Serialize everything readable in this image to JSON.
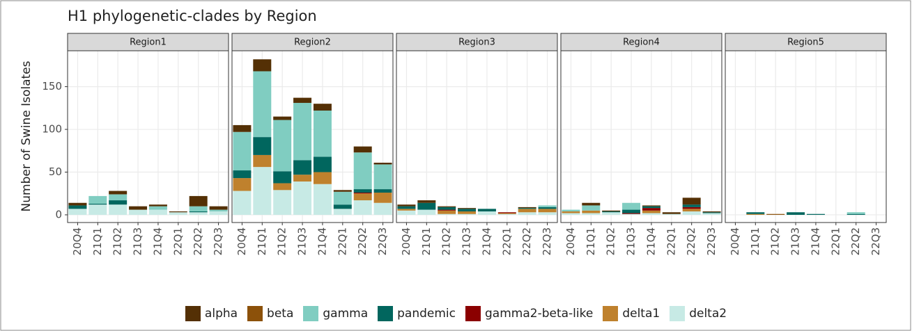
{
  "title": "H1 phylogenetic-clades by Region",
  "ylabel": "Number of Swine Isolates",
  "chart_data": [
    {
      "type": "bar",
      "stacked": true,
      "title": "Region1",
      "grid": true,
      "ylim": [
        -9,
        192
      ],
      "yticks": [
        0,
        50,
        100,
        150
      ],
      "categories": [
        "20Q4",
        "21Q1",
        "21Q2",
        "21Q3",
        "21Q4",
        "22Q1",
        "22Q2",
        "22Q3"
      ],
      "series": [
        {
          "name": "alpha",
          "color": "#543005",
          "values": [
            3,
            0,
            4,
            4,
            2,
            1,
            12,
            4
          ]
        },
        {
          "name": "beta",
          "color": "#8c510a",
          "values": [
            0,
            0,
            0,
            0,
            0,
            0,
            0,
            0
          ]
        },
        {
          "name": "gamma",
          "color": "#80cdc1",
          "values": [
            0,
            9,
            7,
            0,
            4,
            0,
            6,
            2
          ]
        },
        {
          "name": "pandemic",
          "color": "#01665e",
          "values": [
            4,
            1,
            5,
            0,
            0,
            0,
            1,
            0
          ]
        },
        {
          "name": "gamma2-beta-like",
          "color": "#8b0000",
          "values": [
            0,
            0,
            0,
            0,
            0,
            0,
            0,
            0
          ]
        },
        {
          "name": "delta1",
          "color": "#bf812d",
          "values": [
            0,
            0,
            0,
            0,
            0,
            0,
            0,
            0
          ]
        },
        {
          "name": "delta2",
          "color": "#c7eae5",
          "values": [
            7,
            12,
            12,
            6,
            6,
            3,
            3,
            4
          ]
        }
      ]
    },
    {
      "type": "bar",
      "stacked": true,
      "title": "Region2",
      "grid": true,
      "ylim": [
        -9,
        192
      ],
      "yticks": [
        0,
        50,
        100,
        150
      ],
      "categories": [
        "20Q4",
        "21Q1",
        "21Q2",
        "21Q3",
        "21Q4",
        "22Q1",
        "22Q2",
        "22Q3"
      ],
      "series": [
        {
          "name": "alpha",
          "color": "#543005",
          "values": [
            8,
            14,
            4,
            6,
            8,
            2,
            7,
            2
          ]
        },
        {
          "name": "beta",
          "color": "#8c510a",
          "values": [
            0,
            0,
            0,
            0,
            0,
            0,
            0,
            0
          ]
        },
        {
          "name": "gamma",
          "color": "#80cdc1",
          "values": [
            45,
            77,
            60,
            67,
            54,
            15,
            43,
            29
          ]
        },
        {
          "name": "pandemic",
          "color": "#01665e",
          "values": [
            9,
            21,
            14,
            17,
            18,
            5,
            4,
            4
          ]
        },
        {
          "name": "gamma2-beta-like",
          "color": "#8b0000",
          "values": [
            0,
            0,
            0,
            0,
            0,
            0,
            1,
            0
          ]
        },
        {
          "name": "delta1",
          "color": "#bf812d",
          "values": [
            15,
            14,
            8,
            8,
            14,
            0,
            8,
            12
          ]
        },
        {
          "name": "delta2",
          "color": "#c7eae5",
          "values": [
            28,
            56,
            29,
            39,
            36,
            7,
            17,
            14
          ]
        }
      ]
    },
    {
      "type": "bar",
      "stacked": true,
      "title": "Region3",
      "grid": true,
      "ylim": [
        -9,
        192
      ],
      "yticks": [
        0,
        50,
        100,
        150
      ],
      "categories": [
        "20Q4",
        "21Q1",
        "21Q2",
        "21Q3",
        "21Q4",
        "22Q1",
        "22Q2",
        "22Q3"
      ],
      "series": [
        {
          "name": "alpha",
          "color": "#543005",
          "values": [
            2,
            3,
            1,
            1,
            0,
            0,
            1,
            0
          ]
        },
        {
          "name": "beta",
          "color": "#8c510a",
          "values": [
            0,
            0,
            0,
            0,
            0,
            0,
            0,
            0
          ]
        },
        {
          "name": "gamma",
          "color": "#80cdc1",
          "values": [
            0,
            0,
            0,
            0,
            0,
            0,
            0,
            2
          ]
        },
        {
          "name": "pandemic",
          "color": "#01665e",
          "values": [
            3,
            8,
            3,
            3,
            3,
            0,
            1,
            2
          ]
        },
        {
          "name": "gamma2-beta-like",
          "color": "#8b0000",
          "values": [
            0,
            0,
            1,
            0,
            0,
            1,
            0,
            0
          ]
        },
        {
          "name": "delta1",
          "color": "#bf812d",
          "values": [
            2,
            0,
            4,
            3,
            0,
            1,
            4,
            4
          ]
        },
        {
          "name": "delta2",
          "color": "#c7eae5",
          "values": [
            5,
            6,
            1,
            1,
            4,
            1,
            3,
            3
          ]
        }
      ]
    },
    {
      "type": "bar",
      "stacked": true,
      "title": "Region4",
      "grid": true,
      "ylim": [
        -9,
        192
      ],
      "yticks": [
        0,
        50,
        100,
        150
      ],
      "categories": [
        "20Q4",
        "21Q1",
        "21Q2",
        "21Q3",
        "21Q4",
        "22Q1",
        "22Q2",
        "22Q3"
      ],
      "series": [
        {
          "name": "alpha",
          "color": "#543005",
          "values": [
            0,
            3,
            1,
            0,
            1,
            2,
            8,
            1
          ]
        },
        {
          "name": "beta",
          "color": "#8c510a",
          "values": [
            0,
            0,
            0,
            0,
            0,
            0,
            0,
            0
          ]
        },
        {
          "name": "gamma",
          "color": "#80cdc1",
          "values": [
            2,
            6,
            0,
            8,
            0,
            0,
            0,
            0
          ]
        },
        {
          "name": "pandemic",
          "color": "#01665e",
          "values": [
            0,
            0,
            1,
            4,
            2,
            0,
            3,
            1
          ]
        },
        {
          "name": "gamma2-beta-like",
          "color": "#8b0000",
          "values": [
            0,
            0,
            0,
            1,
            3,
            0,
            2,
            0
          ]
        },
        {
          "name": "delta1",
          "color": "#bf812d",
          "values": [
            2,
            3,
            0,
            0,
            3,
            0,
            3,
            0
          ]
        },
        {
          "name": "delta2",
          "color": "#c7eae5",
          "values": [
            2,
            2,
            3,
            1,
            2,
            1,
            4,
            2
          ]
        }
      ]
    },
    {
      "type": "bar",
      "stacked": true,
      "title": "Region5",
      "grid": true,
      "ylim": [
        -9,
        192
      ],
      "yticks": [
        0,
        50,
        100,
        150
      ],
      "categories": [
        "20Q4",
        "21Q1",
        "21Q2",
        "21Q3",
        "21Q4",
        "22Q1",
        "22Q2",
        "22Q3"
      ],
      "series": [
        {
          "name": "alpha",
          "color": "#543005",
          "values": [
            0,
            0,
            0,
            0,
            0,
            0,
            0,
            0
          ]
        },
        {
          "name": "beta",
          "color": "#8c510a",
          "values": [
            0,
            0,
            1,
            0,
            0,
            0,
            0,
            0
          ]
        },
        {
          "name": "gamma",
          "color": "#80cdc1",
          "values": [
            0,
            0,
            0,
            0,
            0,
            0,
            2,
            0
          ]
        },
        {
          "name": "pandemic",
          "color": "#01665e",
          "values": [
            0,
            2,
            0,
            3,
            1,
            0,
            1,
            0
          ]
        },
        {
          "name": "gamma2-beta-like",
          "color": "#8b0000",
          "values": [
            0,
            0,
            0,
            0,
            0,
            0,
            0,
            0
          ]
        },
        {
          "name": "delta1",
          "color": "#bf812d",
          "values": [
            0,
            1,
            0,
            0,
            0,
            0,
            0,
            0
          ]
        },
        {
          "name": "delta2",
          "color": "#c7eae5",
          "values": [
            0,
            0,
            0,
            0,
            0,
            0,
            0,
            0
          ]
        }
      ]
    }
  ]
}
